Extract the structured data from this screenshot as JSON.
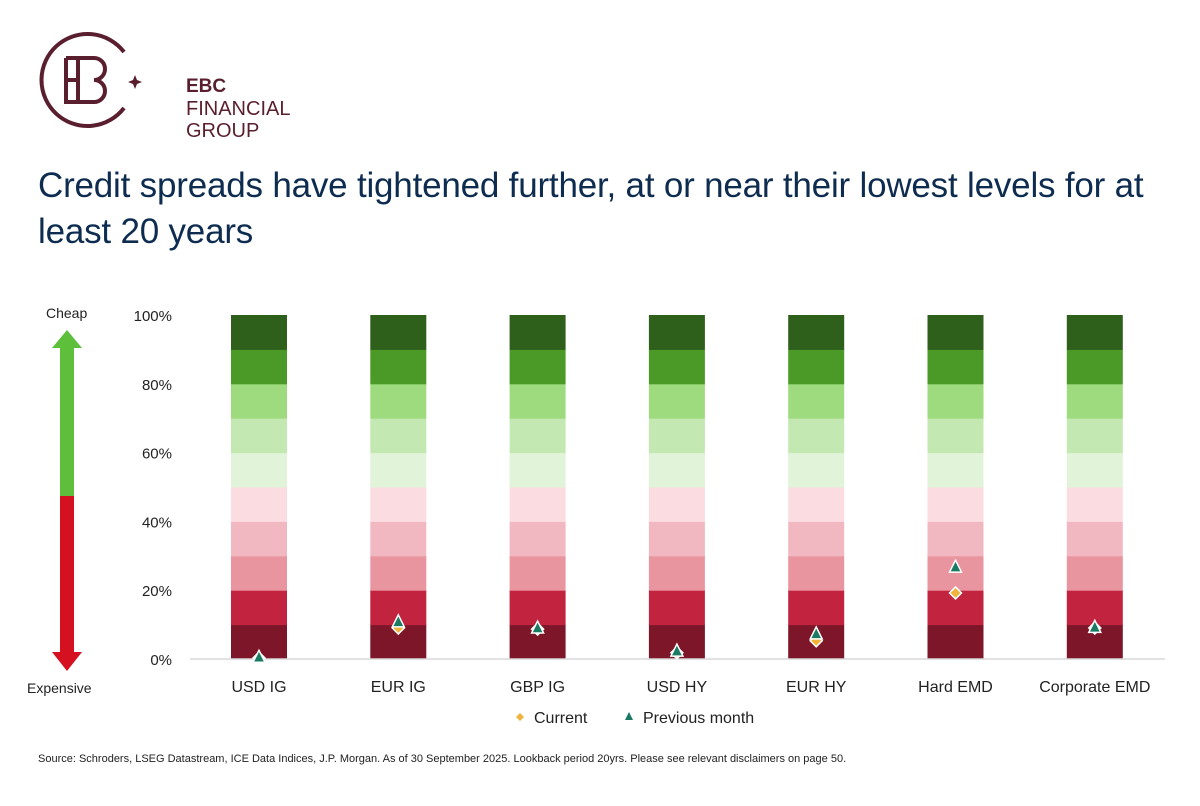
{
  "logo": {
    "line1": "EBC",
    "line2": "FINANCIAL",
    "line3": "GROUP"
  },
  "title": "Credit spreads have tightened further, at or near their lowest levels for at least 20 years",
  "scale_labels": {
    "top": "Cheap",
    "bottom": "Expensive"
  },
  "source": "Source: Schroders, LSEG Datastream, ICE Data Indices, J.P. Morgan. As of 30 September 2025. Lookback period 20yrs. Please see relevant disclaimers on page 50.",
  "chart_data": {
    "type": "bar",
    "subtype": "stacked percentile bands with markers",
    "categories": [
      "USD IG",
      "EUR IG",
      "GBP IG",
      "USD HY",
      "EUR HY",
      "Hard EMD",
      "Corporate EMD"
    ],
    "ylim": [
      0,
      100
    ],
    "yticks": [
      "0%",
      "20%",
      "40%",
      "60%",
      "80%",
      "100%"
    ],
    "bands": [
      10,
      10,
      10,
      10,
      10,
      10,
      10,
      10,
      10,
      10
    ],
    "band_colors": [
      "#7d1628",
      "#c2233f",
      "#e9959f",
      "#f2b8c1",
      "#fadce1",
      "#e1f3d8",
      "#c3e8b2",
      "#9edb7e",
      "#4b9a27",
      "#2e5f1b"
    ],
    "legend_position": "bottom",
    "series": [
      {
        "name": "Current",
        "marker": "diamond",
        "color": "#f0b43c",
        "values": [
          0.3,
          9,
          8.7,
          1.8,
          5.3,
          19.2,
          9
        ]
      },
      {
        "name": "Previous month",
        "marker": "triangle",
        "color": "#1a7a62",
        "values": [
          0.5,
          10.8,
          9,
          2.3,
          7.3,
          26.7,
          9.2
        ]
      }
    ]
  }
}
